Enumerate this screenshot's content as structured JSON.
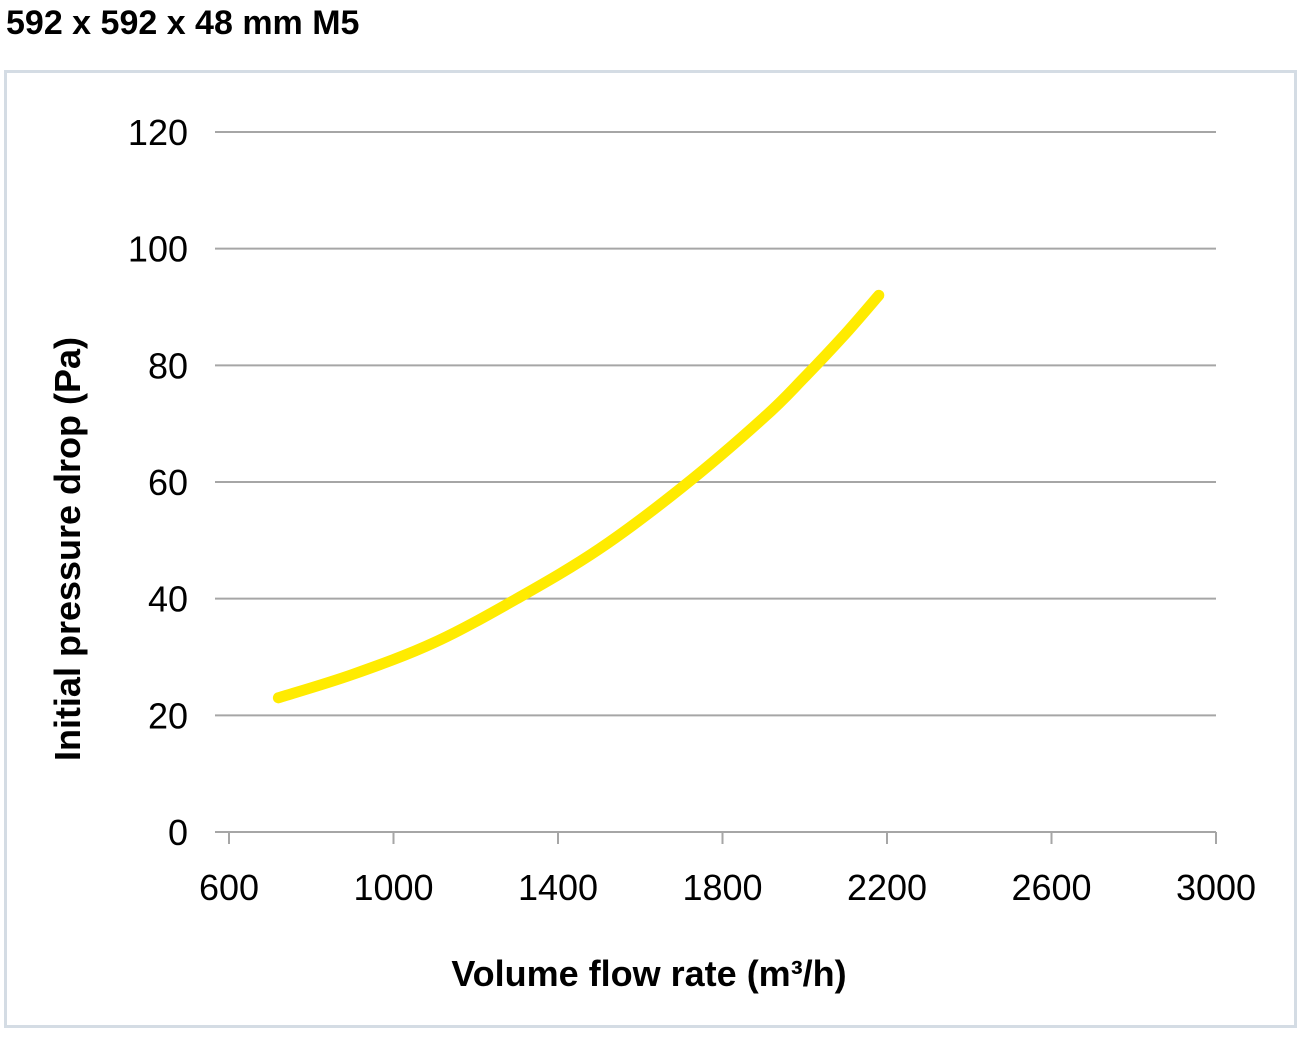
{
  "page": {
    "title": "592 x 592 x 48 mm M5"
  },
  "chart_data": {
    "type": "line",
    "title": "",
    "xlabel": "Volume flow rate (m³/h)",
    "ylabel": "Initial pressure drop (Pa)",
    "xlim": [
      600,
      3000
    ],
    "ylim": [
      0,
      120
    ],
    "x_ticks": [
      600,
      1000,
      1400,
      1800,
      2200,
      2600,
      3000
    ],
    "y_ticks": [
      0,
      20,
      40,
      60,
      80,
      100,
      120
    ],
    "x_tick_labels": [
      "600",
      "1000",
      "1400",
      "1800",
      "2200",
      "2600",
      "3000"
    ],
    "y_tick_labels": [
      "0",
      "20",
      "40",
      "60",
      "80",
      "100",
      "120"
    ],
    "grid": "horizontal",
    "legend": "none",
    "line_color": "#ffeb00",
    "grid_color": "#a6a6a6",
    "series": [
      {
        "x": [
          720,
          900,
          1100,
          1300,
          1500,
          1700,
          1900,
          2000,
          2100,
          2180
        ],
        "y": [
          23,
          27,
          32.5,
          40,
          48.5,
          59,
          71,
          78,
          85.5,
          92
        ]
      }
    ]
  }
}
